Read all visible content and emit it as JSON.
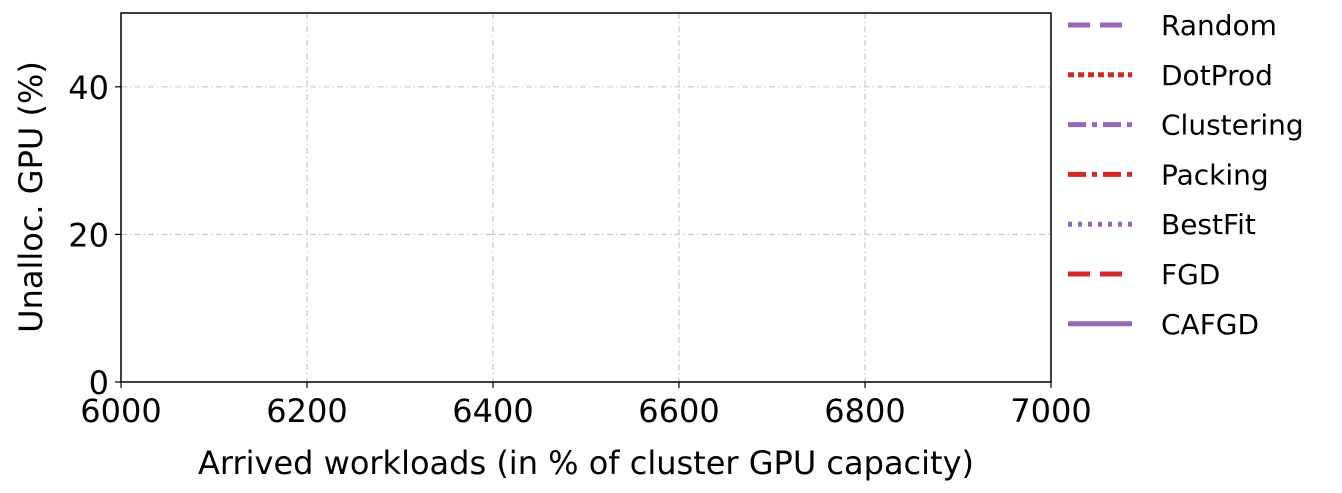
{
  "chart_data": {
    "type": "line",
    "title": "",
    "xlabel": "Arrived workloads (in % of cluster GPU capacity)",
    "ylabel": "Unalloc. GPU (%)",
    "xlim": [
      6000,
      7000
    ],
    "ylim": [
      0,
      50
    ],
    "xticks": [
      6000,
      6200,
      6400,
      6600,
      6800,
      7000
    ],
    "yticks": [
      0,
      20,
      40
    ],
    "xtick_labels": [
      "6000",
      "6200",
      "6400",
      "6600",
      "6800",
      "7000"
    ],
    "ytick_labels": [
      "0",
      "20",
      "40"
    ],
    "grid": true,
    "legend_position": "outside-right",
    "series": [
      {
        "name": "Random",
        "color": "#9467bd",
        "style": "dashed",
        "x": [],
        "y": []
      },
      {
        "name": "DotProd",
        "color": "#d62728",
        "style": "dotted-dense",
        "x": [],
        "y": []
      },
      {
        "name": "Clustering",
        "color": "#9467bd",
        "style": "dashdot",
        "x": [],
        "y": []
      },
      {
        "name": "Packing",
        "color": "#d62728",
        "style": "dashdot",
        "x": [],
        "y": []
      },
      {
        "name": "BestFit",
        "color": "#9467bd",
        "style": "dotted",
        "x": [],
        "y": []
      },
      {
        "name": "FGD",
        "color": "#d62728",
        "style": "dashed",
        "x": [],
        "y": []
      },
      {
        "name": "CAFGD",
        "color": "#9467bd",
        "style": "solid",
        "x": [],
        "y": []
      }
    ]
  }
}
